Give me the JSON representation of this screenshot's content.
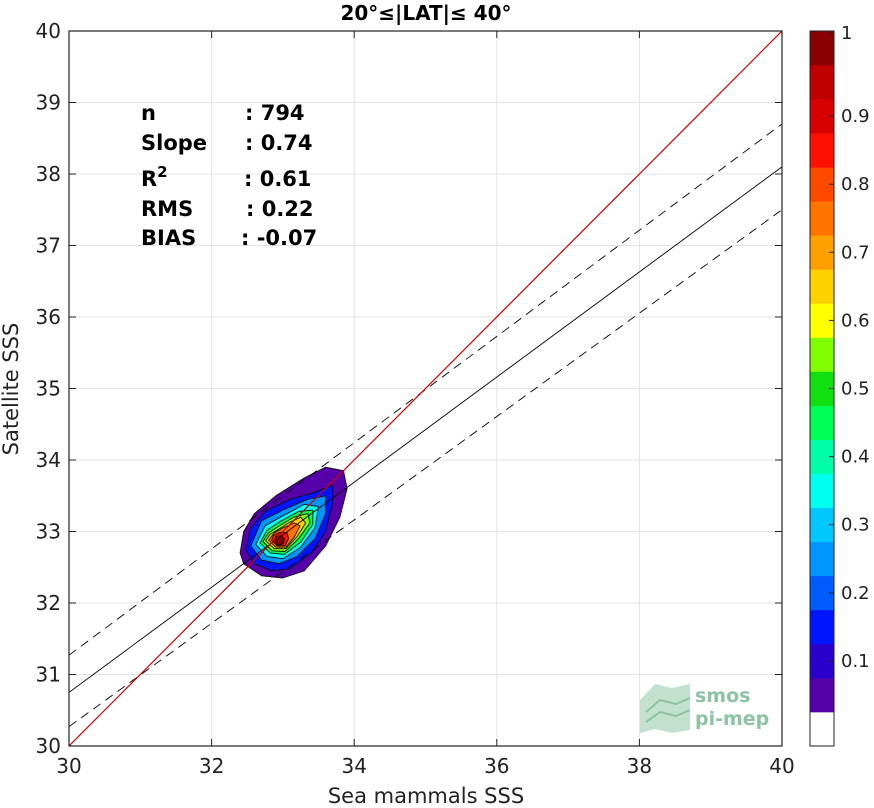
{
  "chart_data": {
    "type": "heatmap",
    "title": "20°≤|LAT|≤ 40°",
    "xlabel": "Sea mammals SSS",
    "ylabel": "Satellite SSS",
    "xlim": [
      30,
      40
    ],
    "ylim": [
      30,
      40
    ],
    "xticks": [
      "30",
      "32",
      "34",
      "36",
      "38",
      "40"
    ],
    "yticks": [
      "30",
      "31",
      "32",
      "33",
      "34",
      "35",
      "36",
      "37",
      "38",
      "39",
      "40"
    ],
    "grid": true,
    "stats": [
      {
        "label": "n",
        "sep": ":",
        "value": "794"
      },
      {
        "label": "Slope",
        "sep": ":",
        "value": "0.74"
      },
      {
        "label": "R",
        "sup": "2",
        "sep": ":",
        "value": "0.61"
      },
      {
        "label": "RMS",
        "sep": ":",
        "value": "0.22"
      },
      {
        "label": "BIAS",
        "sep": ":",
        "value": "-0.07"
      }
    ],
    "lines": {
      "identity": {
        "x": [
          30,
          40
        ],
        "y": [
          30,
          40
        ],
        "color": "#cc0000"
      },
      "fit": {
        "x": [
          30,
          40
        ],
        "y": [
          30.75,
          38.1
        ],
        "color": "#000000"
      },
      "fit_upper": {
        "x": [
          30,
          40
        ],
        "y": [
          31.27,
          38.7
        ],
        "style": "dashed"
      },
      "fit_lower": {
        "x": [
          30,
          40
        ],
        "y": [
          30.27,
          37.5
        ],
        "style": "dashed"
      }
    },
    "density": {
      "peak": {
        "x": 32.95,
        "y": 32.88
      },
      "levels": [
        {
          "level": 0.05,
          "points": [
            [
              32.4,
              32.7
            ],
            [
              32.45,
              32.55
            ],
            [
              32.7,
              32.38
            ],
            [
              33.0,
              32.35
            ],
            [
              33.3,
              32.45
            ],
            [
              33.6,
              32.8
            ],
            [
              33.8,
              33.2
            ],
            [
              33.9,
              33.6
            ],
            [
              33.85,
              33.85
            ],
            [
              33.6,
              33.9
            ],
            [
              33.3,
              33.75
            ],
            [
              32.9,
              33.5
            ],
            [
              32.6,
              33.25
            ],
            [
              32.45,
              33.0
            ]
          ]
        },
        {
          "level": 0.15,
          "points": [
            [
              32.48,
              32.75
            ],
            [
              32.6,
              32.55
            ],
            [
              32.85,
              32.45
            ],
            [
              33.1,
              32.48
            ],
            [
              33.4,
              32.7
            ],
            [
              33.6,
              33.0
            ],
            [
              33.7,
              33.4
            ],
            [
              33.7,
              33.65
            ],
            [
              33.45,
              33.55
            ],
            [
              33.1,
              33.45
            ],
            [
              32.75,
              33.28
            ],
            [
              32.55,
              33.05
            ]
          ]
        },
        {
          "level": 0.25,
          "points": [
            [
              32.55,
              32.8
            ],
            [
              32.7,
              32.6
            ],
            [
              32.95,
              32.55
            ],
            [
              33.2,
              32.65
            ],
            [
              33.45,
              32.9
            ],
            [
              33.6,
              33.25
            ],
            [
              33.6,
              33.5
            ],
            [
              33.35,
              33.45
            ],
            [
              33.0,
              33.3
            ],
            [
              32.7,
              33.15
            ]
          ]
        },
        {
          "level": 0.35,
          "points": [
            [
              32.62,
              32.82
            ],
            [
              32.78,
              32.65
            ],
            [
              33.0,
              32.62
            ],
            [
              33.25,
              32.78
            ],
            [
              33.45,
              33.05
            ],
            [
              33.5,
              33.35
            ],
            [
              33.3,
              33.38
            ],
            [
              33.0,
              33.22
            ],
            [
              32.75,
              33.08
            ]
          ]
        },
        {
          "level": 0.45,
          "points": [
            [
              32.68,
              32.84
            ],
            [
              32.82,
              32.7
            ],
            [
              33.02,
              32.68
            ],
            [
              33.25,
              32.85
            ],
            [
              33.42,
              33.1
            ],
            [
              33.42,
              33.3
            ],
            [
              33.22,
              33.28
            ],
            [
              32.98,
              33.15
            ],
            [
              32.78,
              33.02
            ]
          ]
        },
        {
          "level": 0.55,
          "points": [
            [
              32.72,
              32.86
            ],
            [
              32.85,
              32.73
            ],
            [
              33.03,
              32.72
            ],
            [
              33.22,
              32.9
            ],
            [
              33.38,
              33.12
            ],
            [
              33.35,
              33.25
            ],
            [
              33.15,
              33.2
            ],
            [
              32.95,
              33.08
            ],
            [
              32.8,
              32.98
            ]
          ]
        },
        {
          "level": 0.65,
          "points": [
            [
              32.76,
              32.87
            ],
            [
              32.88,
              32.76
            ],
            [
              33.04,
              32.76
            ],
            [
              33.2,
              32.93
            ],
            [
              33.32,
              33.12
            ],
            [
              33.25,
              33.2
            ],
            [
              33.08,
              33.12
            ],
            [
              32.92,
              33.02
            ],
            [
              32.82,
              32.96
            ]
          ]
        },
        {
          "level": 0.75,
          "points": [
            [
              32.8,
              32.88
            ],
            [
              32.9,
              32.78
            ],
            [
              33.04,
              32.78
            ],
            [
              33.16,
              32.92
            ],
            [
              33.24,
              33.08
            ],
            [
              33.16,
              33.12
            ],
            [
              33.0,
              33.05
            ],
            [
              32.88,
              32.98
            ]
          ]
        },
        {
          "level": 0.85,
          "points": [
            [
              32.84,
              32.88
            ],
            [
              32.92,
              32.8
            ],
            [
              33.03,
              32.8
            ],
            [
              33.08,
              32.9
            ],
            [
              33.06,
              32.98
            ],
            [
              32.96,
              32.99
            ],
            [
              32.87,
              32.95
            ]
          ]
        },
        {
          "level": 0.95,
          "points": [
            [
              32.88,
              32.88
            ],
            [
              32.94,
              32.82
            ],
            [
              33.01,
              32.83
            ],
            [
              33.02,
              32.9
            ],
            [
              32.97,
              32.94
            ],
            [
              32.9,
              32.93
            ]
          ]
        }
      ]
    },
    "colorbar": {
      "ticks": [
        "1",
        "0.9",
        "0.8",
        "0.7",
        "0.6",
        "0.5",
        "0.4",
        "0.3",
        "0.2",
        "0.1"
      ],
      "tick_values": [
        1,
        0.9,
        0.8,
        0.7,
        0.6,
        0.5,
        0.4,
        0.3,
        0.2,
        0.1
      ],
      "colors": [
        "#ffffff",
        "#5500a8",
        "#2a00cc",
        "#0015ff",
        "#005cff",
        "#0096ff",
        "#00c8ff",
        "#00ffee",
        "#00ffa8",
        "#00ff55",
        "#10e010",
        "#7fff00",
        "#ffff00",
        "#ffd000",
        "#ffa000",
        "#ff7400",
        "#ff4800",
        "#ff1000",
        "#d80000",
        "#c00000",
        "#8a0000"
      ]
    }
  },
  "logo": {
    "line1": "smos",
    "line2": "pi-mep"
  }
}
